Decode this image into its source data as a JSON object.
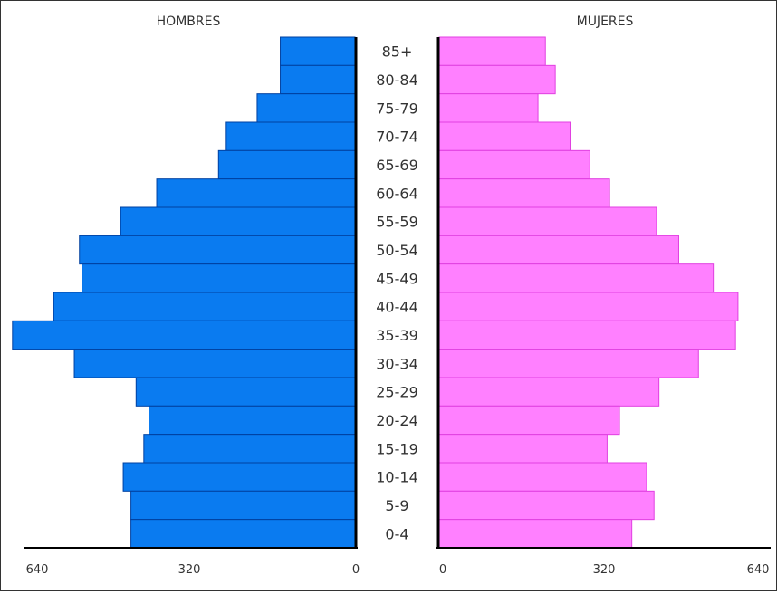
{
  "chart_data": {
    "type": "bar",
    "orientation": "horizontal",
    "layout": "population-pyramid",
    "categories": [
      "85+",
      "80-84",
      "75-79",
      "70-74",
      "65-69",
      "60-64",
      "55-59",
      "50-54",
      "45-49",
      "40-44",
      "35-39",
      "30-34",
      "25-29",
      "20-24",
      "15-19",
      "10-14",
      "5-9",
      "0-4"
    ],
    "series": [
      {
        "name": "HOMBRES",
        "side": "left",
        "color": "#0a7bf0",
        "values": [
          145,
          145,
          190,
          250,
          265,
          385,
          455,
          535,
          530,
          585,
          665,
          545,
          425,
          400,
          410,
          450,
          435,
          435
        ]
      },
      {
        "name": "MUJERES",
        "side": "right",
        "color": "#ff80ff",
        "values": [
          215,
          235,
          200,
          265,
          305,
          345,
          440,
          485,
          555,
          605,
          600,
          525,
          445,
          365,
          340,
          420,
          435,
          390
        ]
      }
    ],
    "xlim": [
      0,
      640
    ],
    "left_ticks": [
      "640",
      "320",
      "0"
    ],
    "right_ticks": [
      "0",
      "320",
      "640"
    ],
    "grid": false
  }
}
